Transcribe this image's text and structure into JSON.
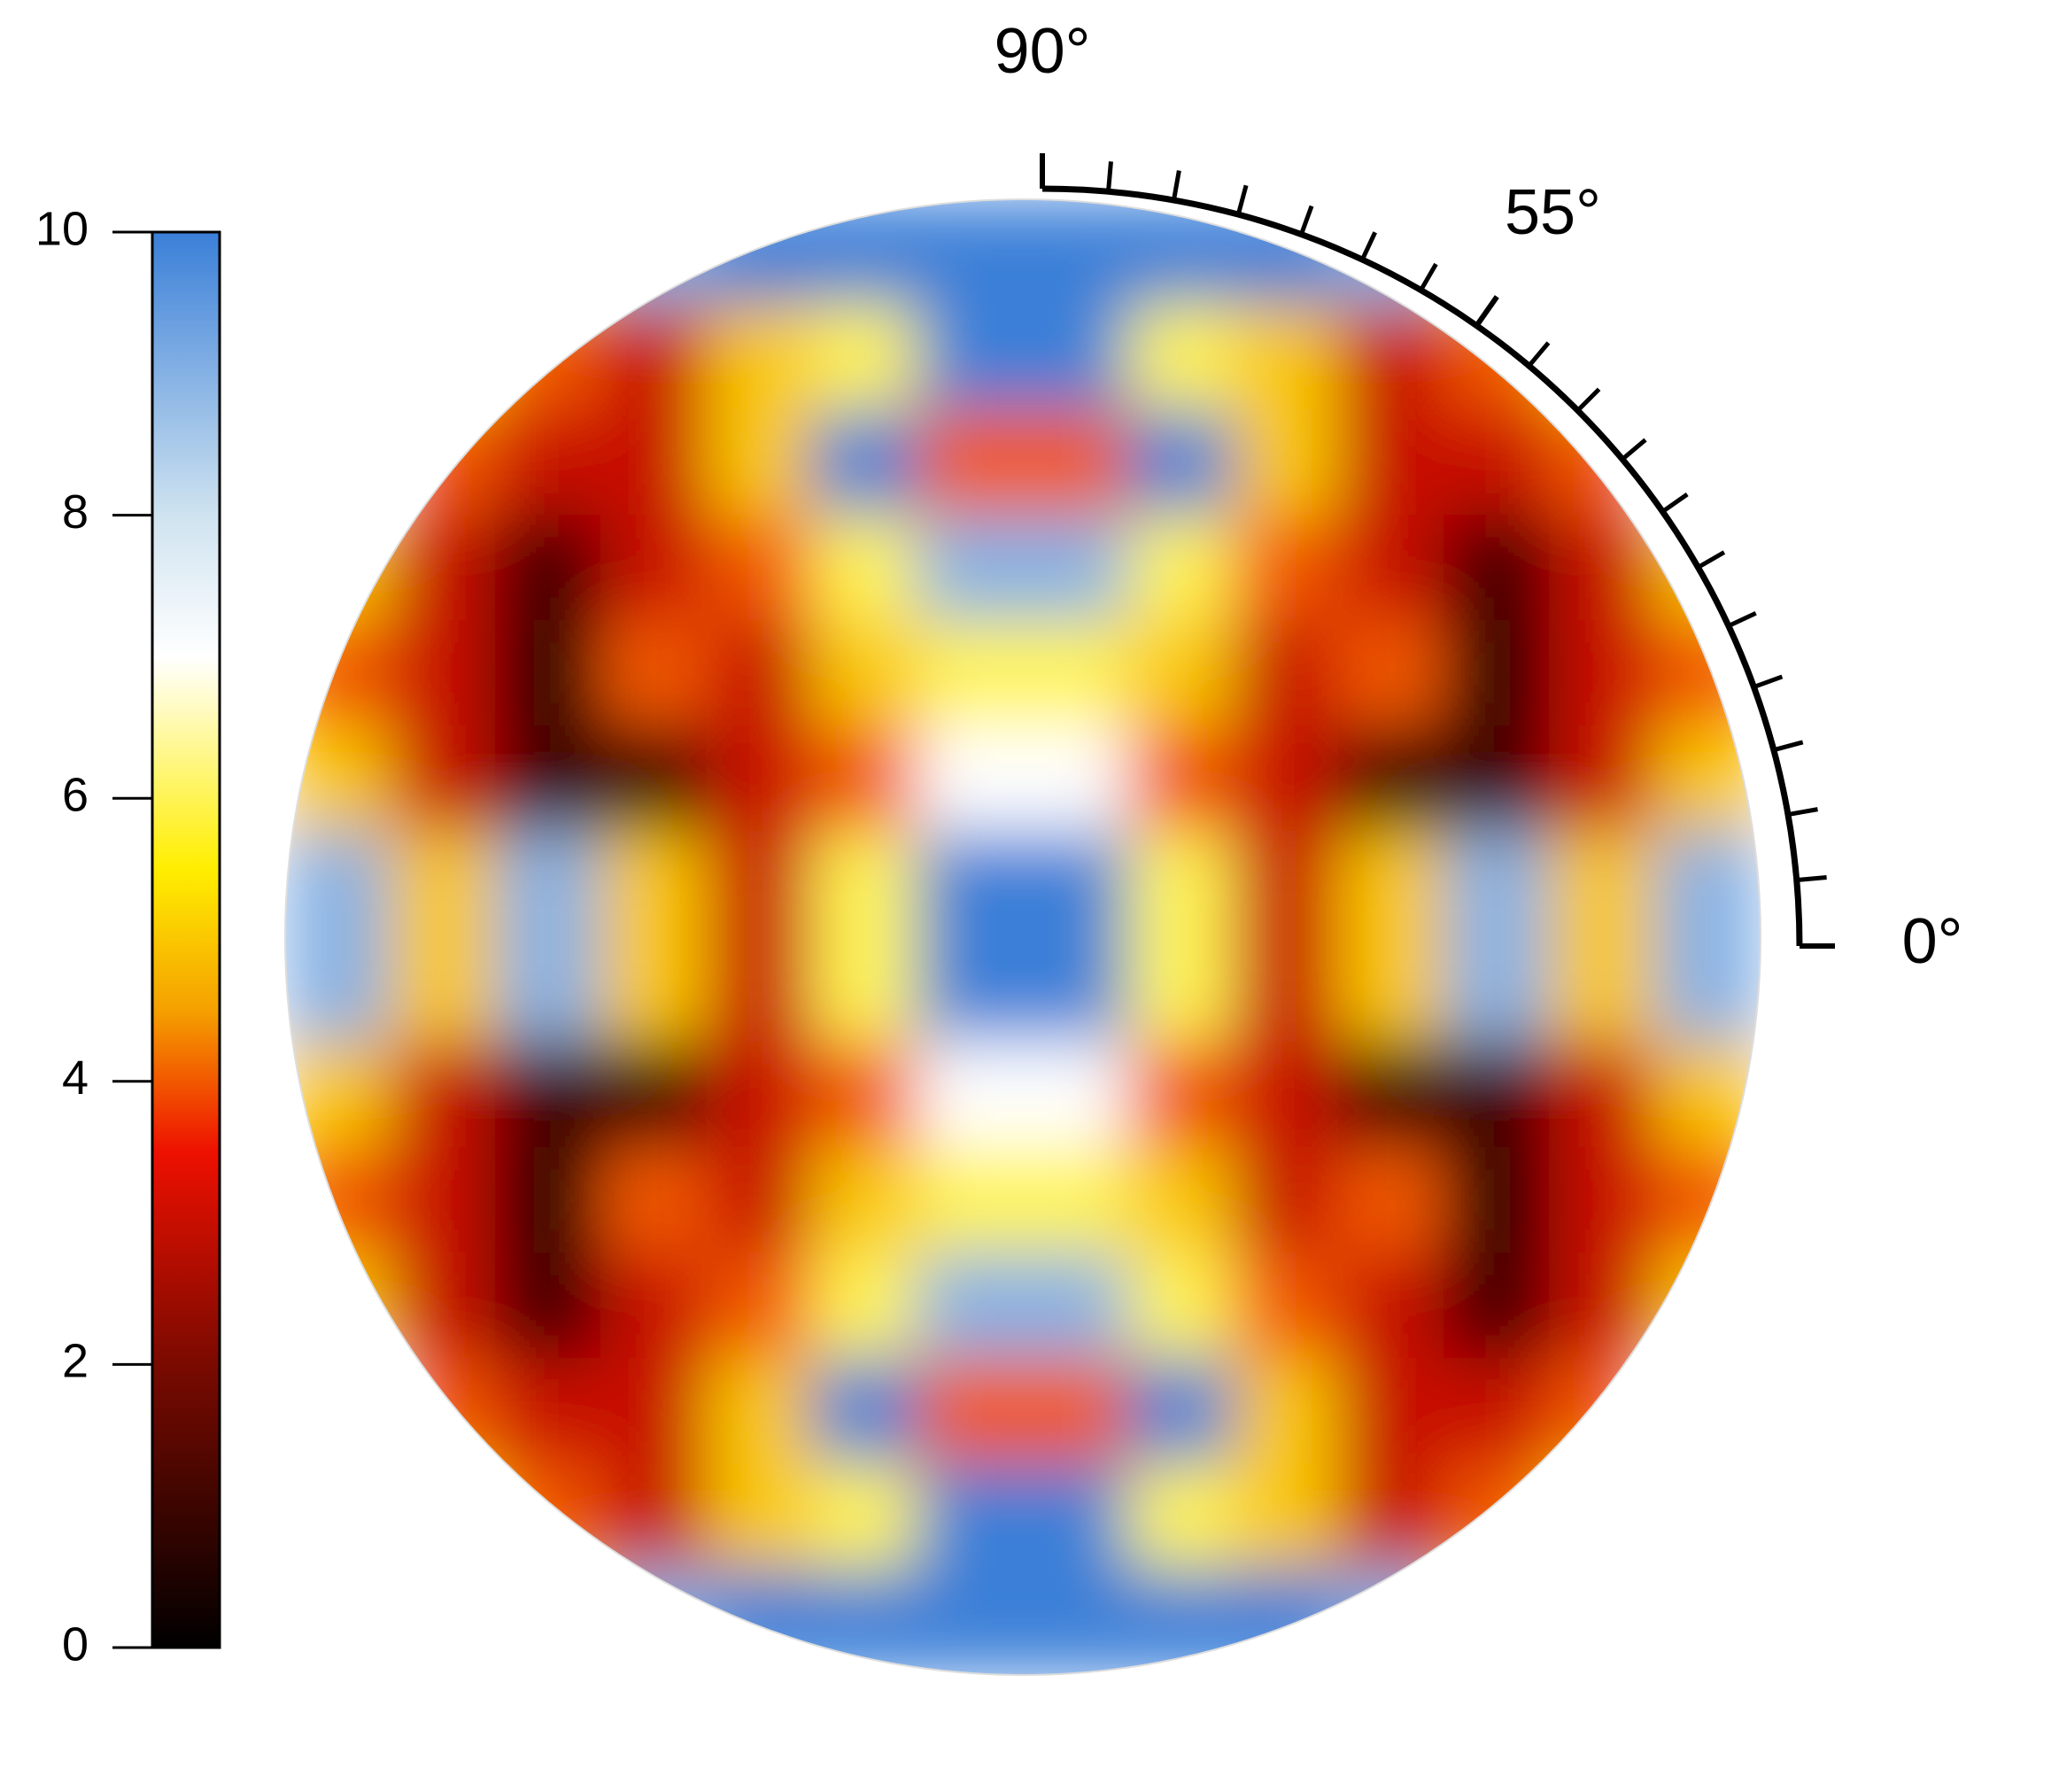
{
  "chart_data": {
    "type": "polar-heatmap",
    "z": [
      [
        8,
        6,
        5,
        9,
        10,
        10,
        10,
        10,
        10,
        10,
        9,
        5,
        6,
        8
      ],
      [
        6,
        5,
        4,
        3,
        5,
        6,
        10,
        10,
        6,
        5,
        3,
        4,
        5,
        6
      ],
      [
        7,
        4,
        3,
        3,
        5,
        10,
        4,
        4,
        10,
        5,
        3,
        3,
        4,
        7
      ],
      [
        5,
        3,
        1,
        3,
        4,
        6,
        9,
        9,
        6,
        4,
        3,
        1,
        3,
        5
      ],
      [
        4,
        3,
        0.5,
        4,
        3,
        5,
        6,
        6,
        5,
        3,
        4,
        0.5,
        3,
        4
      ],
      [
        5,
        3,
        1,
        1,
        3,
        4,
        7,
        7,
        4,
        3,
        1,
        1,
        3,
        5
      ],
      [
        9,
        5,
        9,
        5,
        3,
        6,
        10,
        10,
        6,
        3,
        5,
        9,
        5,
        9
      ],
      [
        9,
        5,
        9,
        5,
        3,
        6,
        10,
        10,
        6,
        3,
        5,
        9,
        5,
        9
      ],
      [
        5,
        3,
        1,
        1,
        3,
        4,
        7,
        7,
        4,
        3,
        1,
        1,
        3,
        5
      ],
      [
        4,
        3,
        0.5,
        4,
        3,
        5,
        6,
        6,
        5,
        3,
        4,
        0.5,
        3,
        4
      ],
      [
        5,
        3,
        1,
        3,
        4,
        6,
        9,
        9,
        6,
        4,
        3,
        1,
        3,
        5
      ],
      [
        7,
        4,
        3,
        3,
        5,
        10,
        4,
        4,
        10,
        5,
        3,
        3,
        4,
        7
      ],
      [
        6,
        5,
        4,
        3,
        5,
        6,
        10,
        10,
        6,
        5,
        3,
        4,
        5,
        6
      ],
      [
        8,
        6,
        5,
        9,
        10,
        10,
        10,
        10,
        10,
        10,
        9,
        5,
        6,
        8
      ]
    ],
    "colorscale": [
      [
        0,
        "#000000"
      ],
      [
        2,
        "#7a0a00"
      ],
      [
        3.5,
        "#ee1000"
      ],
      [
        4.5,
        "#f5a000"
      ],
      [
        5.5,
        "#ffee00"
      ],
      [
        7,
        "#ffffff"
      ],
      [
        8,
        "#cfe3f0"
      ],
      [
        10,
        "#3a7fd8"
      ]
    ],
    "clim": [
      0,
      10
    ],
    "cticks": [
      0,
      2,
      4,
      6,
      8,
      10
    ],
    "thetalim": [
      0,
      90
    ],
    "thetaticks": [
      {
        "value": 0,
        "label": "0°"
      },
      {
        "value": 55,
        "label": "55°"
      },
      {
        "value": 90,
        "label": "90°"
      }
    ],
    "minor_thetaticks": [
      5,
      10,
      15,
      20,
      25,
      30,
      35,
      40,
      45,
      50,
      60,
      65,
      70,
      75,
      80,
      85
    ]
  }
}
